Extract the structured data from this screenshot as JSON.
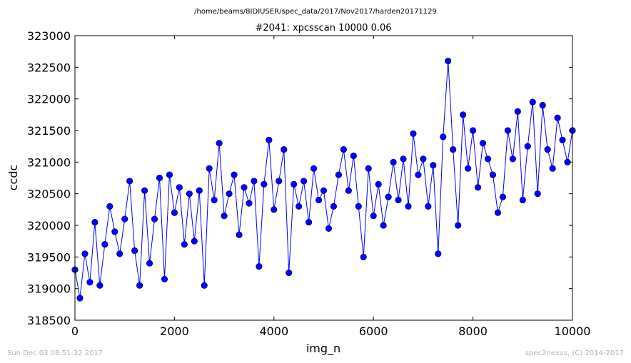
{
  "suptitle": "/home/beams/8IDIUSER/spec_data/2017/Nov2017/harden20171129",
  "footer_left": "Sun Dec 03 08:51:32 2017",
  "footer_right": "spec2nexus, (C) 2014-2017",
  "colors": {
    "series": "#0000ff",
    "marker_edge": "#000080",
    "axis": "#000000",
    "footer": "#b4b4b4"
  },
  "chart_data": {
    "type": "line",
    "title": "#2041: xpcsscan 10000 0.06",
    "xlabel": "img_n",
    "ylabel": "ccdc",
    "xlim": [
      0,
      10000
    ],
    "ylim": [
      318500,
      323000
    ],
    "xticks": [
      0,
      2000,
      4000,
      6000,
      8000,
      10000
    ],
    "yticks": [
      318500,
      319000,
      319500,
      320000,
      320500,
      321000,
      321500,
      322000,
      322500,
      323000
    ],
    "markers": "circle",
    "series": [
      {
        "x": [
          0,
          100,
          200,
          300,
          400,
          500,
          600,
          700,
          800,
          900,
          1000,
          1100,
          1200,
          1300,
          1400,
          1500,
          1600,
          1700,
          1800,
          1900,
          2000,
          2100,
          2200,
          2300,
          2400,
          2500,
          2600,
          2700,
          2800,
          2900,
          3000,
          3100,
          3200,
          3300,
          3400,
          3500,
          3600,
          3700,
          3800,
          3900,
          4000,
          4100,
          4200,
          4300,
          4400,
          4500,
          4600,
          4700,
          4800,
          4900,
          5000,
          5100,
          5200,
          5300,
          5400,
          5500,
          5600,
          5700,
          5800,
          5900,
          6000,
          6100,
          6200,
          6300,
          6400,
          6500,
          6600,
          6700,
          6800,
          6900,
          7000,
          7100,
          7200,
          7300,
          7400,
          7500,
          7600,
          7700,
          7800,
          7900,
          8000,
          8100,
          8200,
          8300,
          8400,
          8500,
          8600,
          8700,
          8800,
          8900,
          9000,
          9100,
          9200,
          9300,
          9400,
          9500,
          9600,
          9700,
          9800,
          9900,
          10000
        ],
        "y": [
          319300,
          318850,
          319550,
          319100,
          320050,
          319050,
          319700,
          320300,
          319900,
          319550,
          320100,
          320700,
          319600,
          319050,
          320550,
          319400,
          320100,
          320750,
          319150,
          320800,
          320200,
          320600,
          319700,
          320500,
          319750,
          320550,
          319050,
          320900,
          320400,
          321300,
          320150,
          320500,
          320800,
          319850,
          320600,
          320350,
          320700,
          319350,
          320650,
          321350,
          320250,
          320700,
          321200,
          319250,
          320650,
          320300,
          320700,
          320050,
          320900,
          320400,
          320550,
          319950,
          320300,
          320800,
          321200,
          320550,
          321100,
          320300,
          319500,
          320900,
          320150,
          320650,
          320000,
          320450,
          321000,
          320400,
          321050,
          320300,
          321450,
          320800,
          321050,
          320300,
          320950,
          319550,
          321400,
          322600,
          321200,
          320000,
          321750,
          320900,
          321500,
          320600,
          321300,
          321050,
          320800,
          320200,
          320450,
          321500,
          321050,
          321800,
          320400,
          321250,
          321950,
          320500,
          321900,
          321200,
          320900,
          321700,
          321350,
          321000,
          321500
        ]
      }
    ]
  }
}
